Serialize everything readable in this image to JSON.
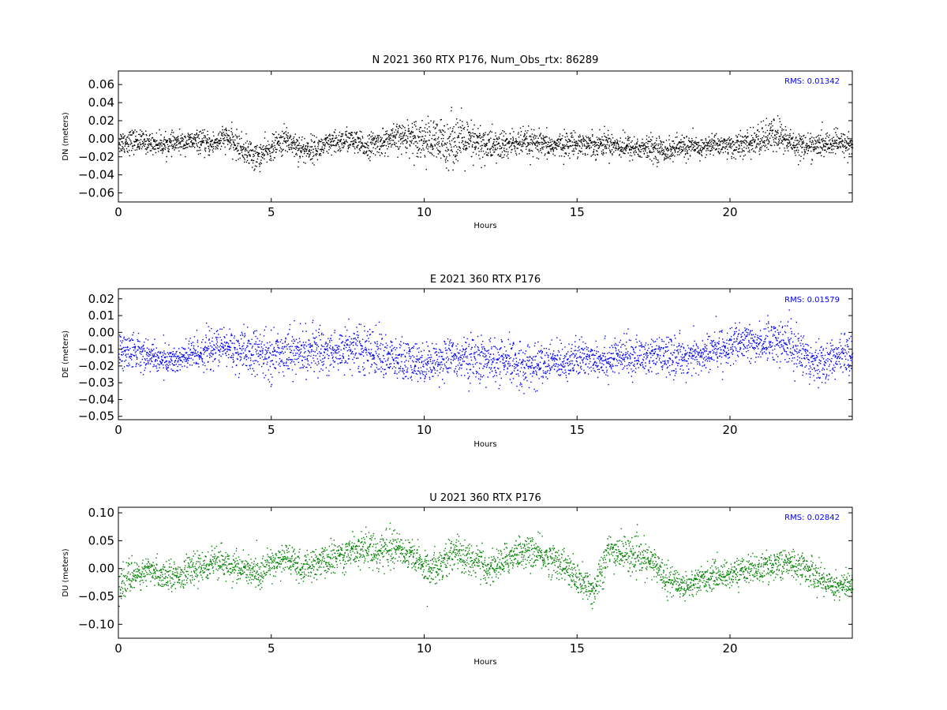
{
  "chart_data": [
    {
      "type": "scatter",
      "title": "N 2021 360 RTX  P176, Num_Obs_rtx: 86289",
      "xlabel": "Hours",
      "ylabel": "DN (meters)",
      "xlim": [
        0,
        24
      ],
      "ylim": [
        -0.07,
        0.075
      ],
      "xticks": [
        0,
        5,
        10,
        15,
        20
      ],
      "yticks": [
        -0.06,
        -0.04,
        -0.02,
        0.0,
        0.02,
        0.04,
        0.06
      ],
      "ytick_labels": [
        "−0.06",
        "−0.04",
        "−0.02",
        "0.00",
        "0.02",
        "0.04",
        "0.06"
      ],
      "color": "#000000",
      "annotation": "RMS:  0.01342",
      "rms": 0.01342,
      "num_obs": 86289,
      "series": [
        {
          "x": [
            0,
            0.5,
            1,
            1.5,
            2,
            2.5,
            3,
            3.5,
            4,
            4.5,
            5,
            5.5,
            6,
            6.5,
            7,
            7.5,
            8,
            8.5,
            9,
            9.5,
            10,
            10.5,
            11,
            11.5,
            12,
            12.5,
            13,
            13.5,
            14,
            14.5,
            15,
            15.5,
            16,
            16.5,
            17,
            17.5,
            18,
            18.5,
            19,
            19.5,
            20,
            20.5,
            21,
            21.5,
            22,
            22.5,
            23,
            23.5,
            24
          ],
          "y": [
            -0.003,
            -0.002,
            -0.004,
            -0.006,
            -0.004,
            -0.002,
            -0.006,
            0.002,
            -0.01,
            -0.02,
            -0.01,
            0.0,
            -0.012,
            -0.01,
            -0.005,
            0.0,
            -0.008,
            -0.004,
            0.0,
            0.004,
            0.0,
            -0.005,
            0.0,
            -0.005,
            -0.006,
            -0.008,
            -0.004,
            -0.005,
            -0.008,
            -0.006,
            -0.004,
            -0.006,
            -0.004,
            -0.008,
            -0.01,
            -0.01,
            -0.012,
            -0.008,
            -0.01,
            -0.005,
            -0.008,
            -0.006,
            0.0,
            0.005,
            -0.004,
            -0.008,
            -0.006,
            -0.004,
            -0.006
          ],
          "spread": [
            0.012,
            0.012,
            0.01,
            0.01,
            0.01,
            0.01,
            0.012,
            0.012,
            0.014,
            0.014,
            0.012,
            0.014,
            0.014,
            0.012,
            0.012,
            0.012,
            0.012,
            0.012,
            0.014,
            0.016,
            0.02,
            0.024,
            0.026,
            0.022,
            0.018,
            0.016,
            0.014,
            0.014,
            0.012,
            0.012,
            0.012,
            0.012,
            0.012,
            0.012,
            0.012,
            0.012,
            0.012,
            0.012,
            0.01,
            0.01,
            0.012,
            0.012,
            0.016,
            0.018,
            0.014,
            0.012,
            0.012,
            0.012,
            0.012
          ]
        }
      ]
    },
    {
      "type": "scatter",
      "title": "E 2021 360 RTX  P176",
      "xlabel": "Hours",
      "ylabel": "DE (meters)",
      "xlim": [
        0,
        24
      ],
      "ylim": [
        -0.052,
        0.026
      ],
      "xticks": [
        0,
        5,
        10,
        15,
        20
      ],
      "yticks": [
        -0.05,
        -0.04,
        -0.03,
        -0.02,
        -0.01,
        0.0,
        0.01,
        0.02
      ],
      "ytick_labels": [
        "−0.05",
        "−0.04",
        "−0.03",
        "−0.02",
        "−0.01",
        "0.00",
        "0.01",
        "0.02"
      ],
      "color": "#0000ff",
      "annotation": "RMS:  0.01579",
      "rms": 0.01579,
      "series": [
        {
          "x": [
            0,
            0.5,
            1,
            1.5,
            2,
            2.5,
            3,
            3.5,
            4,
            4.5,
            5,
            5.5,
            6,
            6.5,
            7,
            7.5,
            8,
            8.5,
            9,
            9.5,
            10,
            10.5,
            11,
            11.5,
            12,
            12.5,
            13,
            13.5,
            14,
            14.5,
            15,
            15.5,
            16,
            16.5,
            17,
            17.5,
            18,
            18.5,
            19,
            19.5,
            20,
            20.5,
            21,
            21.5,
            22,
            22.5,
            23,
            23.5,
            24
          ],
          "y": [
            -0.012,
            -0.01,
            -0.014,
            -0.016,
            -0.016,
            -0.012,
            -0.01,
            -0.008,
            -0.012,
            -0.012,
            -0.014,
            -0.01,
            -0.012,
            -0.01,
            -0.012,
            -0.008,
            -0.01,
            -0.012,
            -0.016,
            -0.018,
            -0.018,
            -0.016,
            -0.014,
            -0.016,
            -0.016,
            -0.018,
            -0.018,
            -0.02,
            -0.018,
            -0.016,
            -0.016,
            -0.014,
            -0.016,
            -0.014,
            -0.014,
            -0.014,
            -0.014,
            -0.014,
            -0.014,
            -0.01,
            -0.008,
            -0.006,
            -0.006,
            -0.004,
            -0.008,
            -0.014,
            -0.018,
            -0.014,
            -0.012
          ],
          "spread": [
            0.01,
            0.01,
            0.008,
            0.008,
            0.008,
            0.01,
            0.01,
            0.01,
            0.012,
            0.012,
            0.012,
            0.012,
            0.012,
            0.012,
            0.012,
            0.012,
            0.012,
            0.012,
            0.012,
            0.012,
            0.01,
            0.01,
            0.01,
            0.012,
            0.012,
            0.012,
            0.012,
            0.012,
            0.01,
            0.01,
            0.01,
            0.01,
            0.01,
            0.01,
            0.01,
            0.01,
            0.01,
            0.01,
            0.01,
            0.01,
            0.01,
            0.01,
            0.01,
            0.012,
            0.012,
            0.012,
            0.012,
            0.01,
            0.01
          ]
        }
      ]
    },
    {
      "type": "scatter",
      "title": "U 2021 360 RTX  P176",
      "xlabel": "Hours",
      "ylabel": "DU (meters)",
      "xlim": [
        0,
        24
      ],
      "ylim": [
        -0.125,
        0.11
      ],
      "xticks": [
        0,
        5,
        10,
        15,
        20
      ],
      "yticks": [
        -0.1,
        -0.05,
        0.0,
        0.05,
        0.1
      ],
      "ytick_labels": [
        "−0.10",
        "−0.05",
        "0.00",
        "0.05",
        "0.10"
      ],
      "color": "#008000",
      "annotation": "RMS:  0.02842",
      "rms": 0.02842,
      "series": [
        {
          "x": [
            0,
            0.5,
            1,
            1.5,
            2,
            2.5,
            3,
            3.5,
            4,
            4.5,
            5,
            5.5,
            6,
            6.5,
            7,
            7.5,
            8,
            8.5,
            9,
            9.5,
            10,
            10.5,
            11,
            11.5,
            12,
            12.5,
            13,
            13.5,
            14,
            14.5,
            15,
            15.5,
            16,
            16.5,
            17,
            17.5,
            18,
            18.5,
            19,
            19.5,
            20,
            20.5,
            21,
            21.5,
            22,
            22.5,
            23,
            23.5,
            24
          ],
          "y": [
            -0.03,
            -0.01,
            -0.005,
            -0.01,
            -0.01,
            0.0,
            0.01,
            0.01,
            0.0,
            -0.01,
            0.01,
            0.02,
            0.0,
            0.01,
            0.02,
            0.03,
            0.04,
            0.03,
            0.04,
            0.03,
            0.0,
            0.01,
            0.03,
            0.02,
            0.0,
            0.01,
            0.03,
            0.03,
            0.02,
            0.01,
            -0.02,
            -0.04,
            0.03,
            0.03,
            0.02,
            0.01,
            -0.02,
            -0.03,
            -0.02,
            -0.01,
            -0.01,
            0.0,
            0.0,
            0.01,
            0.01,
            0.0,
            -0.02,
            -0.03,
            -0.03
          ],
          "spread": [
            0.025,
            0.025,
            0.022,
            0.022,
            0.022,
            0.024,
            0.024,
            0.024,
            0.026,
            0.026,
            0.024,
            0.024,
            0.024,
            0.024,
            0.026,
            0.028,
            0.028,
            0.028,
            0.028,
            0.028,
            0.026,
            0.026,
            0.028,
            0.028,
            0.026,
            0.026,
            0.026,
            0.026,
            0.026,
            0.026,
            0.028,
            0.03,
            0.03,
            0.028,
            0.028,
            0.026,
            0.024,
            0.022,
            0.022,
            0.022,
            0.022,
            0.022,
            0.022,
            0.024,
            0.024,
            0.024,
            0.024,
            0.022,
            0.022
          ]
        }
      ]
    }
  ]
}
